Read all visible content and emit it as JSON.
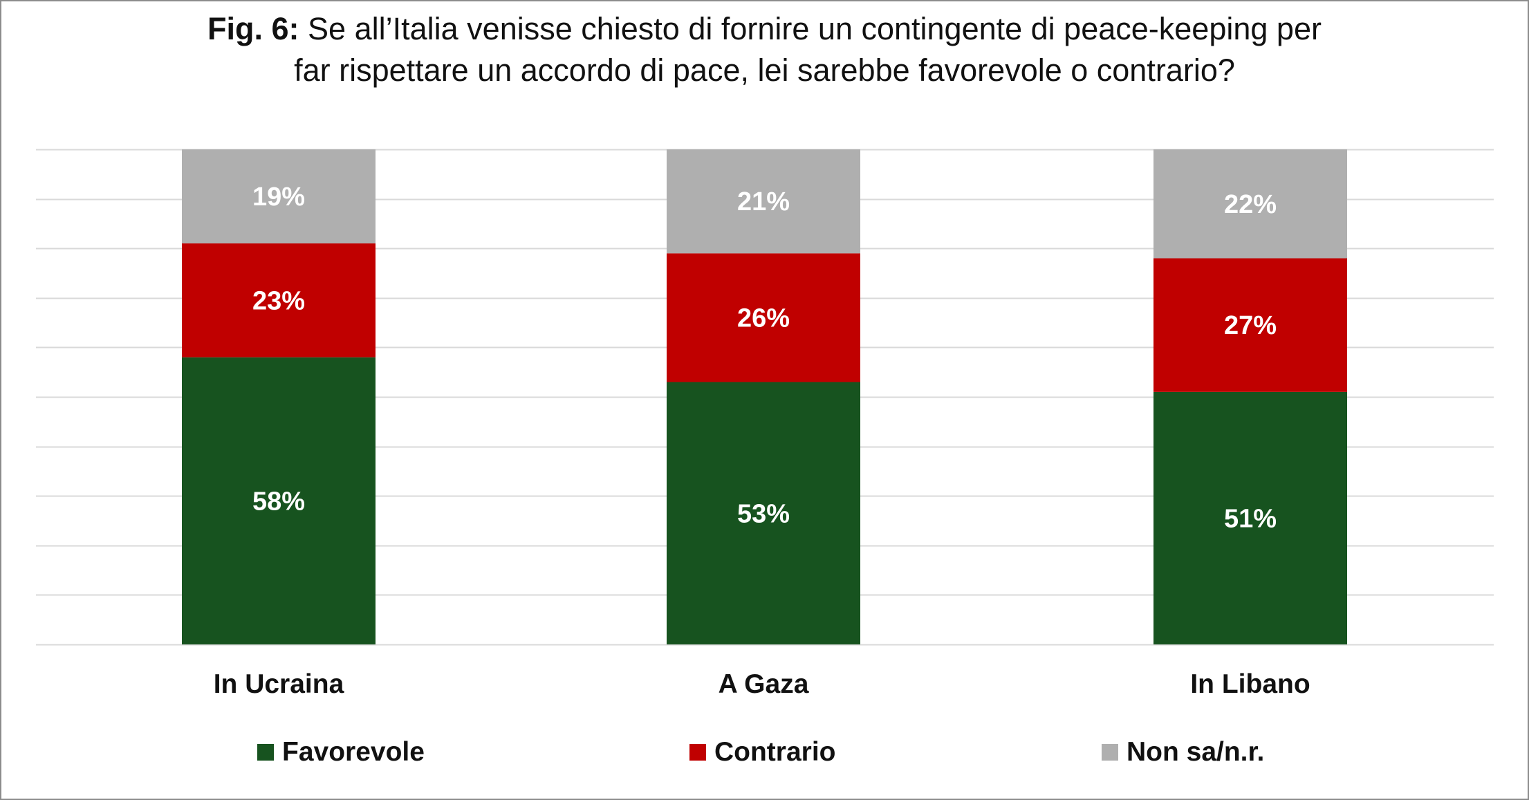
{
  "figure": {
    "fig_label": "Fig. 6:",
    "title_line1": "Se all’Italia venisse chiesto di fornire un contingente di peace-keeping per",
    "title_line2": "far rispettare un accordo di pace, lei sarebbe favorevole o contrario?"
  },
  "chart_data": {
    "type": "bar",
    "stacked": true,
    "orientation": "vertical",
    "title": "Fig. 6: Se all’Italia venisse chiesto di fornire un contingente di peace-keeping per far rispettare un accordo di pace, lei sarebbe favorevole o contrario?",
    "xlabel": "",
    "ylabel": "",
    "ylim": [
      0,
      100
    ],
    "grid": true,
    "legend_position": "bottom",
    "categories": [
      "In Ucraina",
      "A Gaza",
      "In Libano"
    ],
    "series": [
      {
        "name": "Favorevole",
        "values": [
          58,
          53,
          51
        ],
        "labels": [
          "58%",
          "53%",
          "51%"
        ],
        "color": "#17531f"
      },
      {
        "name": "Contrario",
        "values": [
          23,
          26,
          27
        ],
        "labels": [
          "23%",
          "26%",
          "27%"
        ],
        "color": "#c00000"
      },
      {
        "name": "Non sa/n.r.",
        "values": [
          19,
          21,
          22
        ],
        "labels": [
          "19%",
          "21%",
          "22%"
        ],
        "color": "#afafaf"
      }
    ]
  },
  "colors": {
    "gridline": "#d9d9d9",
    "frame": "#8c8c8c",
    "text": "#111111",
    "bar_label": "#ffffff"
  }
}
